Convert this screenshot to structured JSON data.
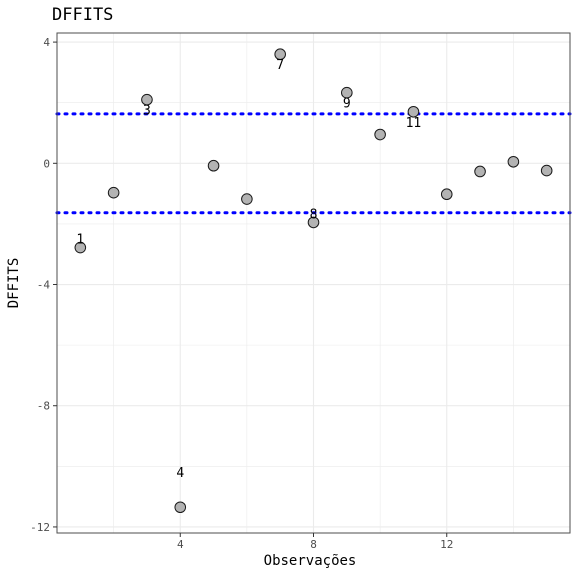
{
  "chart_data": {
    "type": "scatter",
    "title": "DFFITS",
    "xlabel": "Observações",
    "ylabel": "DFFITS",
    "xlim": [
      0.3,
      15.7
    ],
    "ylim": [
      -12.2,
      4.3
    ],
    "xticks": [
      4,
      8,
      12
    ],
    "xtick_labels": [
      "4",
      "8",
      "12"
    ],
    "yticks": [
      4,
      0,
      -4,
      -8,
      -12
    ],
    "ytick_labels": [
      "4",
      "0",
      "-4",
      "-8",
      "-12"
    ],
    "grid": true,
    "legend": "none",
    "points": [
      {
        "x": 1,
        "y": -2.78
      },
      {
        "x": 2,
        "y": -0.97
      },
      {
        "x": 3,
        "y": 2.1
      },
      {
        "x": 4,
        "y": -11.35
      },
      {
        "x": 5,
        "y": -0.08
      },
      {
        "x": 6,
        "y": -1.18
      },
      {
        "x": 7,
        "y": 3.6
      },
      {
        "x": 8,
        "y": -1.95
      },
      {
        "x": 9,
        "y": 2.33
      },
      {
        "x": 10,
        "y": 0.95
      },
      {
        "x": 11,
        "y": 1.7
      },
      {
        "x": 12,
        "y": -1.02
      },
      {
        "x": 13,
        "y": -0.27
      },
      {
        "x": 14,
        "y": 0.05
      },
      {
        "x": 15,
        "y": -0.24
      }
    ],
    "labeled_points": [
      {
        "x": 1,
        "y": -2.78,
        "label": "1"
      },
      {
        "x": 3,
        "y": 2.1,
        "label": "3"
      },
      {
        "x": 4,
        "y": -11.35,
        "label": "4"
      },
      {
        "x": 7,
        "y": 3.6,
        "label": "7"
      },
      {
        "x": 8,
        "y": -1.95,
        "label": "8"
      },
      {
        "x": 9,
        "y": 2.33,
        "label": "9"
      },
      {
        "x": 11,
        "y": 1.7,
        "label": "11"
      }
    ],
    "reference_lines": [
      1.63,
      -1.63
    ],
    "colors": {
      "point_fill": "#b3b3b3",
      "point_stroke": "#1a1a1a",
      "reference_line": "#0000ff",
      "grid": "#ebebeb",
      "panel_border": "#4d4d4d"
    }
  }
}
